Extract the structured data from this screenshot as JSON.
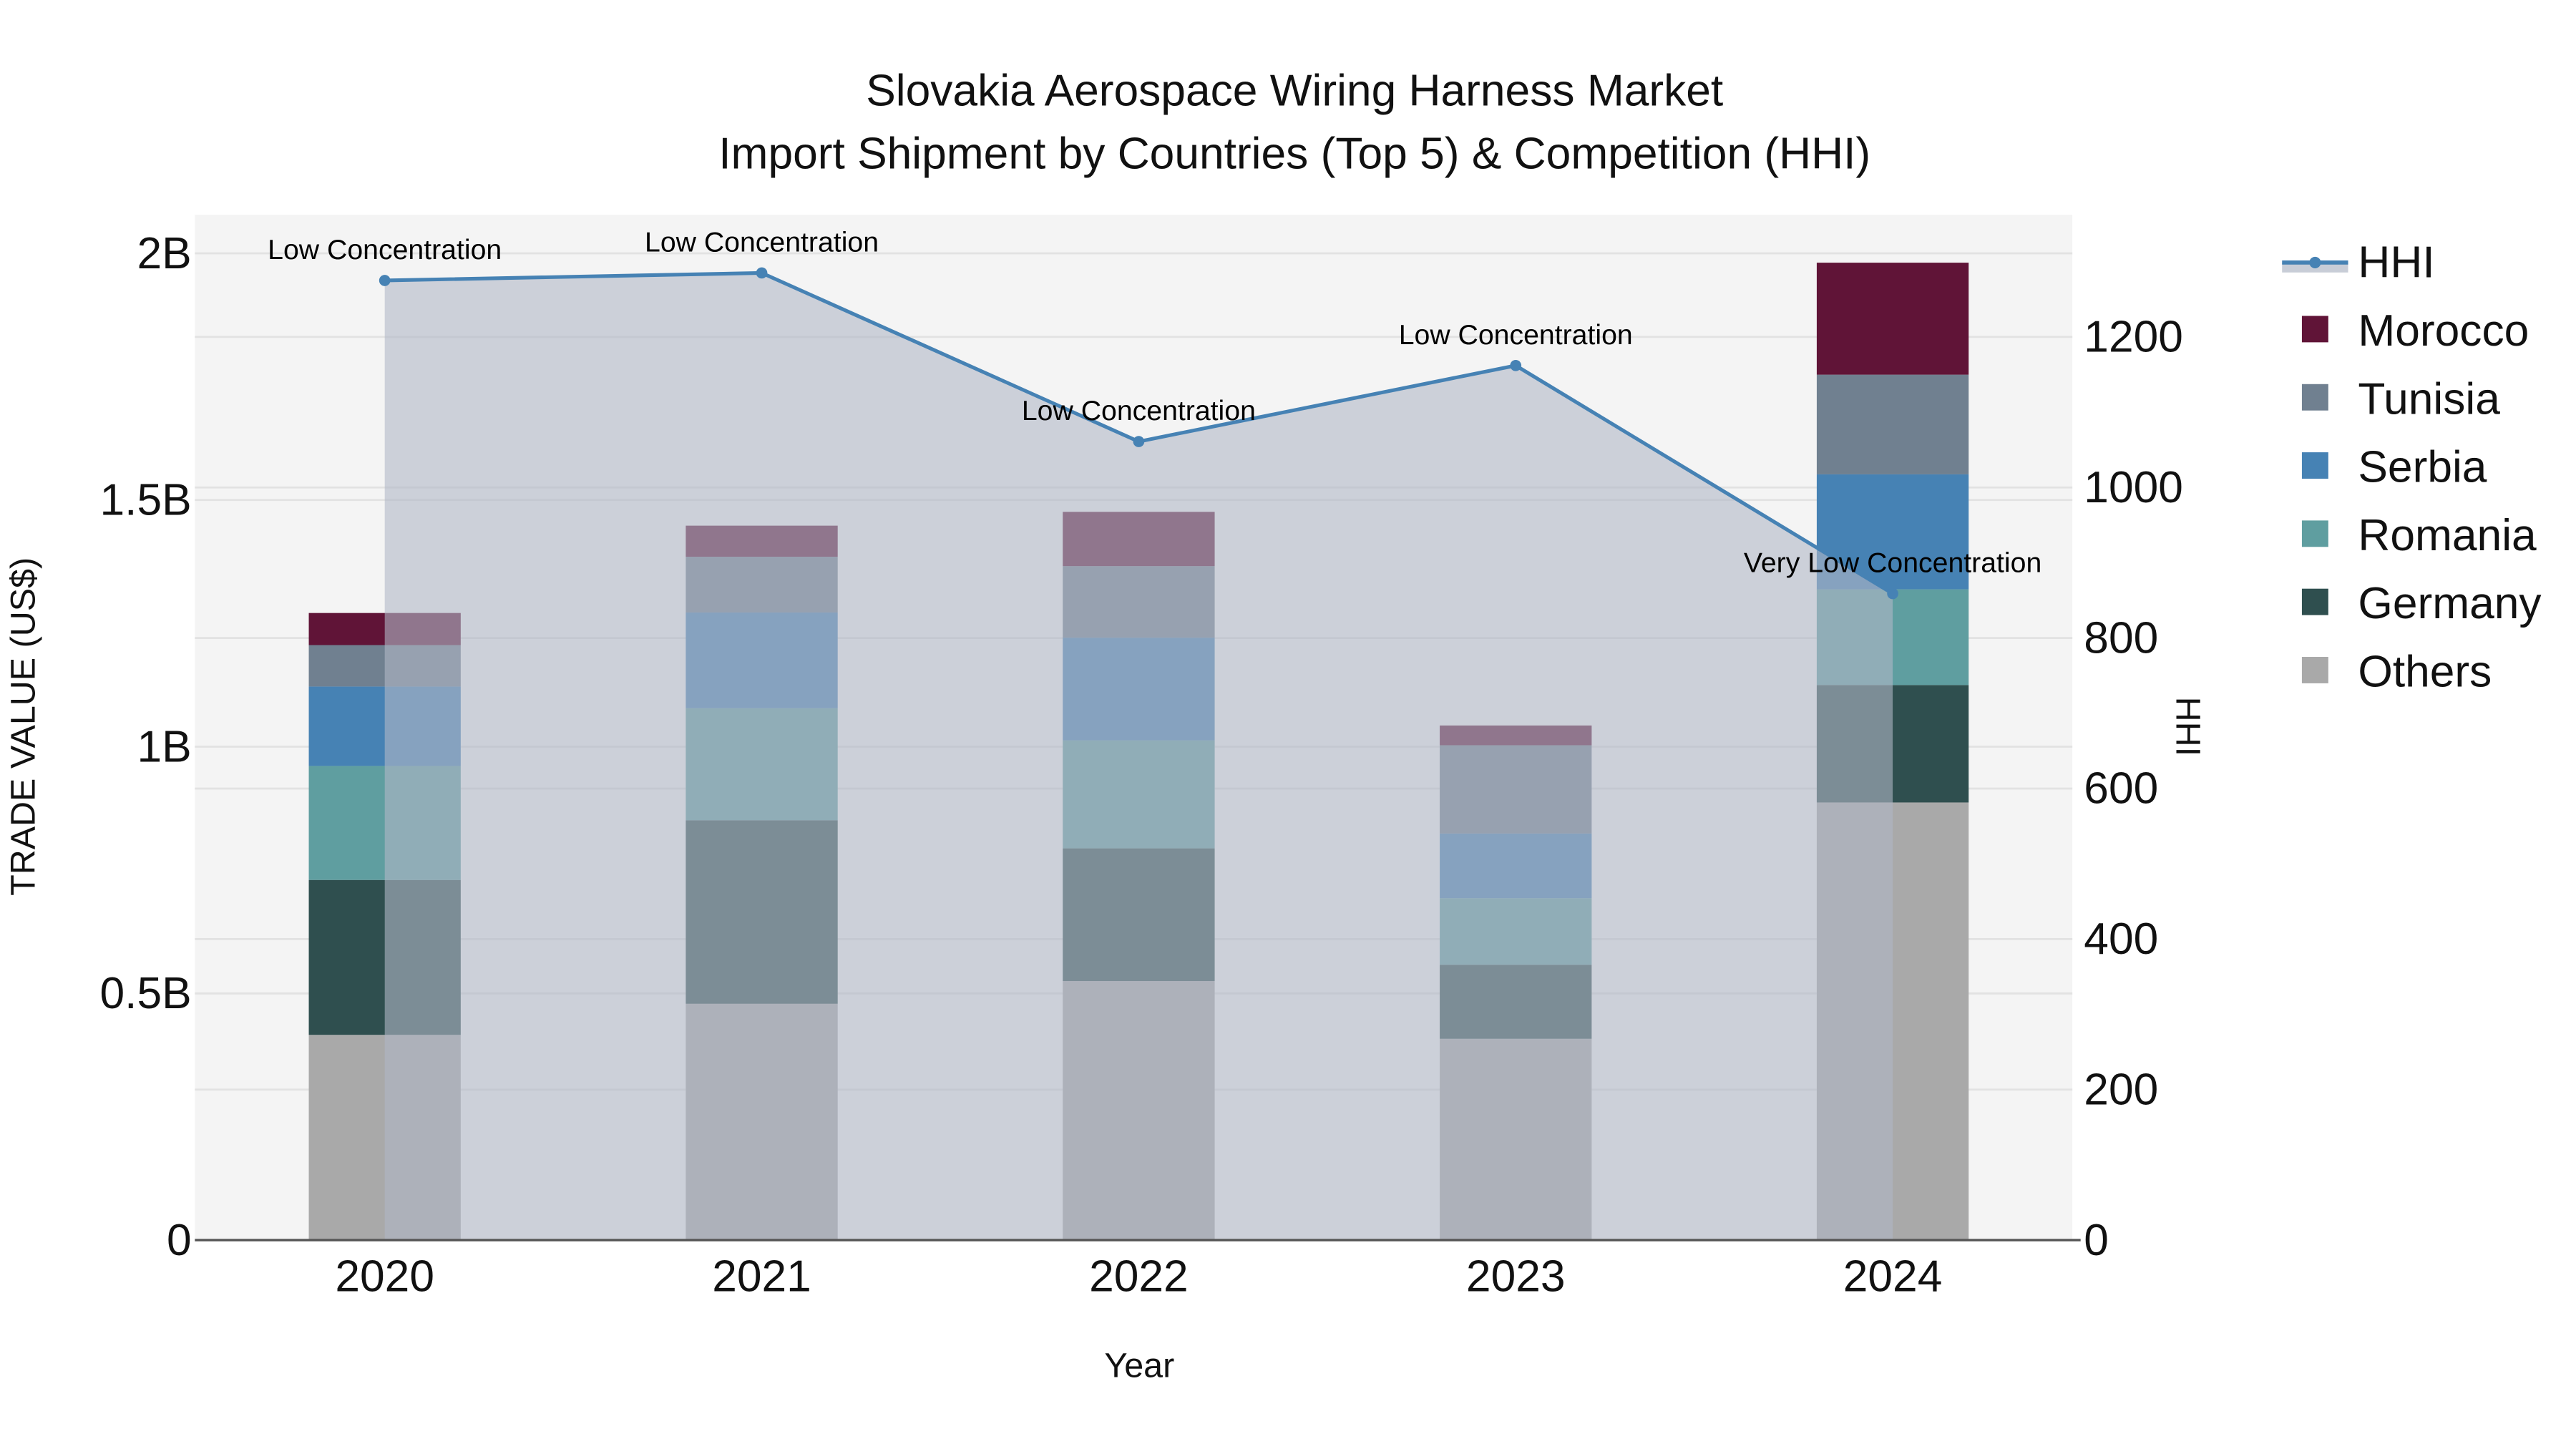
{
  "chart_data": {
    "type": "bar",
    "subtype": "stacked bar with line+area overlay on secondary axis",
    "title": "Slovakia Aerospace Wiring Harness Market",
    "subtitle": "Import Shipment by Countries (Top 5) & Competition (HHI)",
    "xlabel": "Year",
    "ylabel": "TRADE VALUE (US$)",
    "y2label": "HHI",
    "categories": [
      "2020",
      "2021",
      "2022",
      "2023",
      "2024"
    ],
    "y_ticks": [
      {
        "value": 0,
        "label": "0"
      },
      {
        "value": 0.5,
        "label": "0.5B"
      },
      {
        "value": 1.0,
        "label": "1B"
      },
      {
        "value": 1.5,
        "label": "1.5B"
      },
      {
        "value": 2.0,
        "label": "2B"
      }
    ],
    "y2_ticks": [
      {
        "value": 0,
        "label": "0"
      },
      {
        "value": 200,
        "label": "200"
      },
      {
        "value": 400,
        "label": "400"
      },
      {
        "value": 600,
        "label": "600"
      },
      {
        "value": 800,
        "label": "800"
      },
      {
        "value": 1000,
        "label": "1000"
      },
      {
        "value": 1200,
        "label": "1200"
      }
    ],
    "ylim": [
      0,
      2.078
    ],
    "y2lim": [
      0,
      1362
    ],
    "units": "Billions US$",
    "grid": true,
    "legend_position": "right",
    "series": [
      {
        "name": "Others",
        "color": "#A9A9A9",
        "values": [
          0.416,
          0.479,
          0.525,
          0.408,
          0.887
        ]
      },
      {
        "name": "Germany",
        "color": "#2F4F4F",
        "values": [
          0.314,
          0.372,
          0.269,
          0.15,
          0.238
        ]
      },
      {
        "name": "Romania",
        "color": "#5F9EA0",
        "values": [
          0.231,
          0.227,
          0.219,
          0.135,
          0.194
        ]
      },
      {
        "name": "Serbia",
        "color": "#4682B4",
        "values": [
          0.161,
          0.194,
          0.208,
          0.131,
          0.233
        ]
      },
      {
        "name": "Tunisia",
        "color": "#708090",
        "values": [
          0.084,
          0.113,
          0.145,
          0.179,
          0.202
        ]
      },
      {
        "name": "Morocco",
        "color": "#601437",
        "values": [
          0.065,
          0.063,
          0.11,
          0.04,
          0.227
        ]
      }
    ],
    "line_series": {
      "name": "HHI",
      "axis": "y2",
      "color": "#4682B4",
      "fill_color": "rgba(176,184,198,0.6)",
      "values": [
        1275,
        1285,
        1061,
        1162,
        859
      ],
      "annotations": [
        "Low Concentration",
        "Low Concentration",
        "Low Concentration",
        "Low Concentration",
        "Very Low Concentration"
      ]
    },
    "legend": [
      "HHI",
      "Morocco",
      "Tunisia",
      "Serbia",
      "Romania",
      "Germany",
      "Others"
    ]
  }
}
